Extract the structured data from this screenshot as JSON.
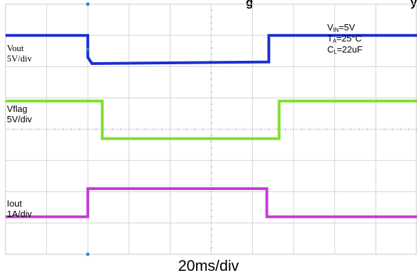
{
  "chart_data": {
    "type": "line",
    "title_fragment": "g",
    "title_fragment_tail": "y",
    "xlabel": "20ms/div",
    "x_unit": "div",
    "xlim": [
      0,
      10
    ],
    "ylim": [
      0,
      8
    ],
    "grid": true,
    "conditions": [
      {
        "base": "V",
        "sub": "IN",
        "rest": "=5V"
      },
      {
        "base": "T",
        "sub": "A",
        "rest": "=25°C"
      },
      {
        "base": "C",
        "sub": "L",
        "rest": "=22uF"
      }
    ],
    "series": [
      {
        "name": "Vout",
        "scale": "5V/div",
        "color": "#1a2fd0",
        "x": [
          0,
          2.0,
          2.0,
          2.1,
          6.3,
          6.4,
          6.4,
          10
        ],
        "y": [
          7.0,
          7.0,
          6.3,
          6.1,
          6.15,
          6.15,
          7.0,
          7.0
        ]
      },
      {
        "name": "Vflag",
        "scale": "5V/div",
        "color": "#7ee02a",
        "x": [
          0,
          2.35,
          2.35,
          6.65,
          6.65,
          10
        ],
        "y": [
          4.9,
          4.9,
          3.7,
          3.7,
          4.9,
          4.9
        ]
      },
      {
        "name": "Iout",
        "scale": "1A/div",
        "color": "#c83ad8",
        "x": [
          0,
          2.0,
          2.0,
          6.35,
          6.35,
          10
        ],
        "y": [
          1.2,
          1.2,
          2.1,
          2.1,
          1.2,
          1.2
        ]
      }
    ]
  }
}
